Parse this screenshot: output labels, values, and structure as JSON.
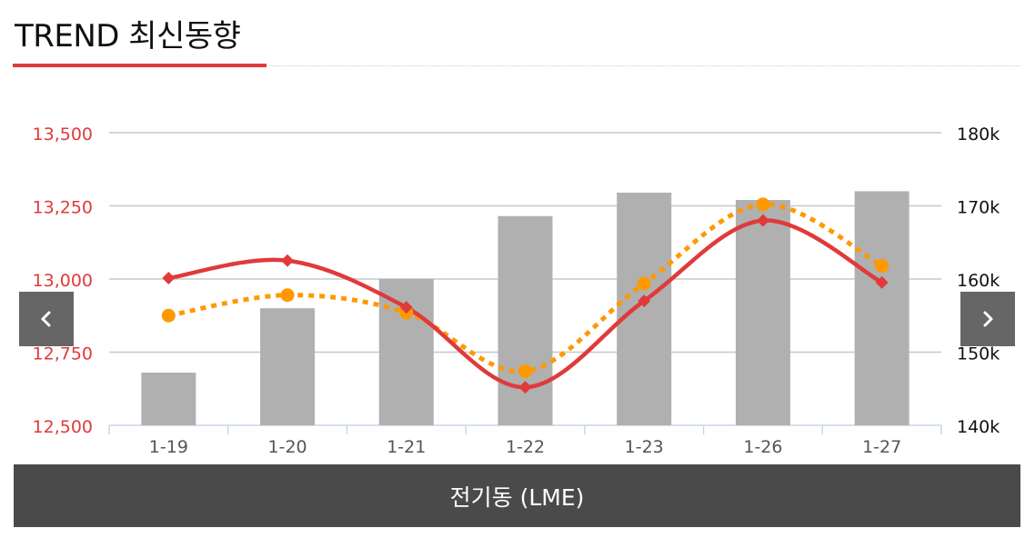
{
  "header": {
    "title": "TREND 최신동향"
  },
  "nav": {
    "prev_icon": "chevron-left-icon",
    "next_icon": "chevron-right-icon"
  },
  "footer": {
    "label": "전기동 (LME)"
  },
  "colors": {
    "accent": "#e03a3a",
    "line_primary": "#e03a3a",
    "line_secondary": "#ff9900",
    "bars": "#b0b0b0",
    "left_axis_text": "#e03a3a"
  },
  "chart_data": {
    "type": "bar",
    "categories": [
      "1-19",
      "1-20",
      "1-21",
      "1-22",
      "1-23",
      "1-26",
      "1-27"
    ],
    "left_axis": {
      "ylim": [
        12500,
        13500
      ],
      "ticks": [
        "12,500",
        "12,750",
        "13,000",
        "13,250",
        "13,500"
      ],
      "tick_values": [
        12500,
        12750,
        13000,
        13250,
        13500
      ]
    },
    "right_axis": {
      "ylim": [
        140000,
        180000
      ],
      "ticks": [
        "140k",
        "150k",
        "160k",
        "170k",
        "180k"
      ],
      "tick_values": [
        140000,
        150000,
        160000,
        170000,
        180000
      ]
    },
    "series": [
      {
        "type": "bar",
        "axis": "right",
        "values": [
          147200,
          156000,
          160000,
          168600,
          171800,
          170800,
          172000
        ]
      },
      {
        "type": "line",
        "axis": "left",
        "values": [
          13003,
          13063,
          12903,
          12630,
          12925,
          13200,
          12988
        ]
      },
      {
        "type": "line",
        "axis": "left",
        "values": [
          12875,
          12945,
          12885,
          12685,
          12985,
          13255,
          13045
        ]
      }
    ],
    "grid": true
  }
}
